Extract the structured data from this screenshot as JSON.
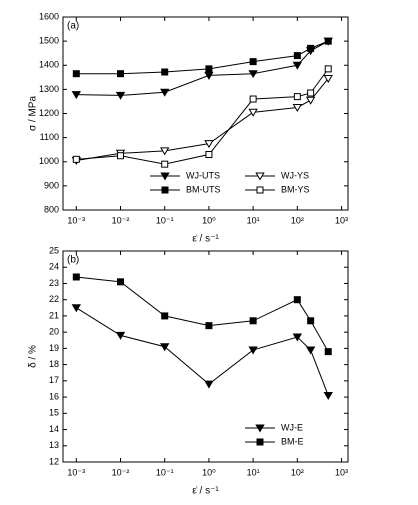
{
  "chart_data": [
    {
      "type": "line",
      "panel_label": "(a)",
      "y_label": "σ / MPa",
      "x_label": "ε̇ / s⁻¹",
      "x": [
        0.001,
        0.01,
        0.1,
        1,
        10,
        100,
        200,
        500
      ],
      "xscale": "log",
      "xlim": [
        0.0005,
        1400
      ],
      "xticks": [
        {
          "value": 0.001,
          "label": "10⁻³"
        },
        {
          "value": 0.01,
          "label": "10⁻²"
        },
        {
          "value": 0.1,
          "label": "10⁻¹"
        },
        {
          "value": 1,
          "label": "10⁰"
        },
        {
          "value": 10,
          "label": "10¹"
        },
        {
          "value": 100,
          "label": "10²"
        },
        {
          "value": 1000,
          "label": "10³"
        }
      ],
      "ylim": [
        800,
        1600
      ],
      "yticks": [
        800,
        900,
        1000,
        1100,
        1200,
        1300,
        1400,
        1500,
        1600
      ],
      "legend": "lower right",
      "legend_columns": 2,
      "series": [
        {
          "name": "WJ-UTS",
          "color": "#000000",
          "marker": "triangle-down",
          "filled": true,
          "values": [
            1278,
            1275,
            1288,
            1358,
            1365,
            1400,
            1460,
            1500
          ]
        },
        {
          "name": "WJ-YS",
          "color": "#000000",
          "marker": "triangle-down",
          "filled": false,
          "values": [
            1005,
            1035,
            1045,
            1075,
            1205,
            1225,
            1255,
            1345
          ]
        },
        {
          "name": "BM-UTS",
          "color": "#000000",
          "marker": "square",
          "filled": true,
          "values": [
            1365,
            1365,
            1372,
            1385,
            1415,
            1440,
            1470,
            1500
          ]
        },
        {
          "name": "BM-YS",
          "color": "#000000",
          "marker": "square",
          "filled": false,
          "values": [
            1010,
            1025,
            990,
            1030,
            1260,
            1270,
            1285,
            1385
          ]
        }
      ]
    },
    {
      "type": "line",
      "panel_label": "(b)",
      "y_label": "δ / %",
      "x_label": "ε̇ / s⁻¹",
      "x": [
        0.001,
        0.01,
        0.1,
        1,
        10,
        100,
        200,
        500
      ],
      "xscale": "log",
      "xlim": [
        0.0005,
        1400
      ],
      "xticks": [
        {
          "value": 0.001,
          "label": "10⁻³"
        },
        {
          "value": 0.01,
          "label": "10⁻²"
        },
        {
          "value": 0.1,
          "label": "10⁻¹"
        },
        {
          "value": 1,
          "label": "10⁰"
        },
        {
          "value": 10,
          "label": "10¹"
        },
        {
          "value": 100,
          "label": "10²"
        },
        {
          "value": 1000,
          "label": "10³"
        }
      ],
      "ylim": [
        12,
        25
      ],
      "yticks": [
        12,
        13,
        14,
        15,
        16,
        17,
        18,
        19,
        20,
        21,
        22,
        23,
        24,
        25
      ],
      "legend": "lower right",
      "legend_columns": 1,
      "series": [
        {
          "name": "WJ-E",
          "color": "#000000",
          "marker": "triangle-down",
          "filled": true,
          "values": [
            21.5,
            19.8,
            19.1,
            16.8,
            18.9,
            19.7,
            18.9,
            16.1
          ]
        },
        {
          "name": "BM-E",
          "color": "#000000",
          "marker": "square",
          "filled": true,
          "values": [
            23.4,
            23.1,
            21.0,
            20.4,
            20.7,
            22.0,
            20.7,
            18.8
          ]
        }
      ]
    }
  ]
}
